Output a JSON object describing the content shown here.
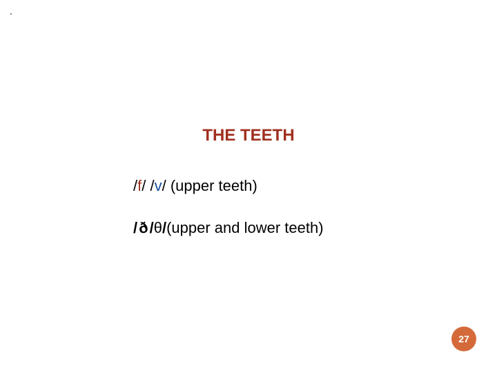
{
  "dot_marker": ".",
  "title": {
    "text": "THE TEETH",
    "color": "#a03020",
    "fontsize": 24,
    "fontweight": "bold"
  },
  "line1": {
    "parts": [
      {
        "text": "/",
        "color": "#000000",
        "weight": "normal"
      },
      {
        "text": "f",
        "color": "#a03020",
        "weight": "normal"
      },
      {
        "text": "/  /",
        "color": "#000000",
        "weight": "normal"
      },
      {
        "text": "v",
        "color": "#1a4fa0",
        "weight": "normal"
      },
      {
        "text": "/  (upper teeth)",
        "color": "#000000",
        "weight": "normal"
      }
    ],
    "fontsize": 22
  },
  "line2": {
    "parts": [
      {
        "text": "/",
        "color": "#000000",
        "weight": "bold"
      },
      {
        "text": "ð",
        "color": "#000000",
        "weight": "bold",
        "class": "eth"
      },
      {
        "text": " /",
        "color": "#000000",
        "weight": "bold"
      },
      {
        "text": "  ",
        "color": "#000000",
        "weight": "normal"
      },
      {
        "text": "θ",
        "color": "#000000",
        "weight": "normal"
      },
      {
        "text": "/",
        "color": "#000000",
        "weight": "bold"
      },
      {
        "text": "(upper and lower teeth)",
        "color": "#000000",
        "weight": "normal"
      }
    ],
    "fontsize": 22
  },
  "page_badge": {
    "number": "27",
    "bg_color": "#d46a3a",
    "text_color": "#ffffff"
  },
  "background_color": "#ffffff"
}
